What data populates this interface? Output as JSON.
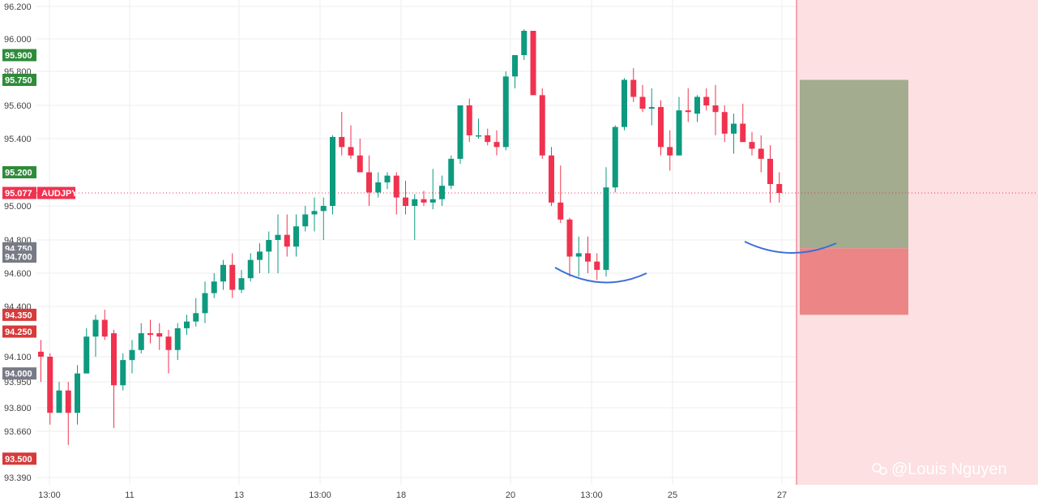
{
  "chart_data": {
    "type": "candlestick",
    "symbol": "AUDJPY",
    "current_price": "95.077",
    "colors": {
      "up": "#0e9a7f",
      "down": "#f0324f",
      "grid": "#eeeeee",
      "future_zone": "#fde0e2",
      "target_zone": "#a3ac8e",
      "stop_zone": "#ec8586",
      "curve": "#3b6fd8"
    },
    "y_ticks": [
      "96.200",
      "96.000",
      "95.800",
      "95.600",
      "95.400",
      "95.000",
      "94.800",
      "94.600",
      "94.400",
      "94.100",
      "93.950",
      "93.800",
      "93.660",
      "93.390"
    ],
    "price_badges": [
      {
        "label": "95.900",
        "color": "#2e8b3a"
      },
      {
        "label": "95.750",
        "color": "#2e8b3a"
      },
      {
        "label": "95.200",
        "color": "#2e8b3a"
      },
      {
        "label": "95.077",
        "color": "#f0324f"
      },
      {
        "label": "94.750",
        "color": "#787b86"
      },
      {
        "label": "94.700",
        "color": "#787b86"
      },
      {
        "label": "94.350",
        "color": "#d63a3a"
      },
      {
        "label": "94.250",
        "color": "#d63a3a"
      },
      {
        "label": "94.000",
        "color": "#787b86"
      },
      {
        "label": "93.500",
        "color": "#d63a3a"
      }
    ],
    "x_ticks": [
      "13:00",
      "11",
      "13",
      "13:00",
      "18",
      "20",
      "13:00",
      "25",
      "27"
    ],
    "zones": {
      "target_top": 95.75,
      "entry": 94.75,
      "stop": 94.35
    },
    "candles": [
      [
        94.13,
        94.2,
        93.95,
        94.1
      ],
      [
        94.1,
        94.12,
        93.7,
        93.77
      ],
      [
        93.77,
        93.95,
        93.77,
        93.9
      ],
      [
        93.9,
        93.95,
        93.58,
        93.77
      ],
      [
        93.77,
        94.05,
        93.7,
        94.0
      ],
      [
        94.0,
        94.27,
        94.0,
        94.22
      ],
      [
        94.22,
        94.35,
        94.1,
        94.32
      ],
      [
        94.32,
        94.38,
        94.2,
        94.22
      ],
      [
        94.24,
        94.26,
        93.68,
        93.93
      ],
      [
        93.93,
        94.12,
        93.9,
        94.08
      ],
      [
        94.08,
        94.2,
        94.0,
        94.14
      ],
      [
        94.14,
        94.3,
        94.12,
        94.24
      ],
      [
        94.24,
        94.32,
        94.18,
        94.23
      ],
      [
        94.24,
        94.3,
        94.14,
        94.22
      ],
      [
        94.22,
        94.26,
        94.0,
        94.14
      ],
      [
        94.14,
        94.3,
        94.08,
        94.27
      ],
      [
        94.27,
        94.35,
        94.23,
        94.31
      ],
      [
        94.31,
        94.45,
        94.28,
        94.36
      ],
      [
        94.36,
        94.55,
        94.3,
        94.48
      ],
      [
        94.48,
        94.6,
        94.45,
        94.55
      ],
      [
        94.55,
        94.68,
        94.5,
        94.65
      ],
      [
        94.65,
        94.72,
        94.45,
        94.5
      ],
      [
        94.5,
        94.62,
        94.48,
        94.57
      ],
      [
        94.57,
        94.72,
        94.55,
        94.68
      ],
      [
        94.68,
        94.78,
        94.6,
        94.73
      ],
      [
        94.73,
        94.85,
        94.6,
        94.8
      ],
      [
        94.8,
        94.95,
        94.6,
        94.83
      ],
      [
        94.83,
        94.95,
        94.7,
        94.76
      ],
      [
        94.76,
        94.95,
        94.7,
        94.88
      ],
      [
        94.88,
        95.0,
        94.85,
        94.95
      ],
      [
        94.95,
        95.05,
        94.85,
        94.97
      ],
      [
        94.97,
        95.05,
        94.8,
        95.0
      ],
      [
        95.0,
        95.42,
        94.95,
        95.41
      ],
      [
        95.41,
        95.56,
        95.3,
        95.35
      ],
      [
        95.35,
        95.48,
        95.28,
        95.3
      ],
      [
        95.3,
        95.4,
        95.2,
        95.2
      ],
      [
        95.2,
        95.3,
        95.0,
        95.08
      ],
      [
        95.08,
        95.2,
        95.05,
        95.14
      ],
      [
        95.14,
        95.2,
        95.1,
        95.18
      ],
      [
        95.18,
        95.2,
        94.95,
        95.05
      ],
      [
        95.05,
        95.15,
        94.95,
        95.0
      ],
      [
        95.0,
        95.07,
        94.8,
        95.04
      ],
      [
        95.04,
        95.09,
        95.0,
        95.02
      ],
      [
        95.02,
        95.22,
        94.98,
        95.04
      ],
      [
        95.04,
        95.18,
        95.0,
        95.12
      ],
      [
        95.12,
        95.3,
        95.1,
        95.28
      ],
      [
        95.28,
        95.6,
        95.25,
        95.6
      ],
      [
        95.6,
        95.64,
        95.38,
        95.42
      ],
      [
        95.42,
        95.52,
        95.4,
        95.42
      ],
      [
        95.42,
        95.46,
        95.36,
        95.38
      ],
      [
        95.38,
        95.45,
        95.3,
        95.35
      ],
      [
        95.35,
        95.8,
        95.33,
        95.77
      ],
      [
        95.77,
        95.9,
        95.7,
        95.9
      ],
      [
        95.9,
        96.06,
        95.87,
        96.05
      ],
      [
        96.05,
        96.05,
        95.68,
        95.66
      ],
      [
        95.66,
        95.7,
        95.28,
        95.3
      ],
      [
        95.3,
        95.35,
        95.0,
        95.02
      ],
      [
        95.02,
        95.24,
        94.9,
        94.92
      ],
      [
        94.92,
        94.93,
        94.58,
        94.7
      ],
      [
        94.7,
        94.82,
        94.58,
        94.72
      ],
      [
        94.72,
        94.82,
        94.6,
        94.67
      ],
      [
        94.67,
        94.72,
        94.56,
        94.62
      ],
      [
        94.62,
        95.23,
        94.58,
        95.11
      ],
      [
        95.11,
        95.48,
        95.08,
        95.47
      ],
      [
        95.47,
        95.76,
        95.45,
        95.75
      ],
      [
        95.75,
        95.82,
        95.62,
        95.65
      ],
      [
        95.65,
        95.72,
        95.56,
        95.58
      ],
      [
        95.58,
        95.7,
        95.48,
        95.59
      ],
      [
        95.59,
        95.63,
        95.3,
        95.35
      ],
      [
        95.35,
        95.45,
        95.21,
        95.3
      ],
      [
        95.3,
        95.65,
        95.3,
        95.57
      ],
      [
        95.57,
        95.7,
        95.5,
        95.56
      ],
      [
        95.55,
        95.66,
        95.5,
        95.65
      ],
      [
        95.65,
        95.7,
        95.57,
        95.6
      ],
      [
        95.6,
        95.72,
        95.42,
        95.56
      ],
      [
        95.56,
        95.6,
        95.38,
        95.43
      ],
      [
        95.43,
        95.55,
        95.31,
        95.49
      ],
      [
        95.49,
        95.61,
        95.38,
        95.38
      ],
      [
        95.38,
        95.44,
        95.3,
        95.34
      ],
      [
        95.34,
        95.42,
        95.2,
        95.28
      ],
      [
        95.28,
        95.36,
        95.02,
        95.13
      ],
      [
        95.13,
        95.2,
        95.02,
        95.077
      ]
    ]
  },
  "watermark": "@Louis Nguyen"
}
